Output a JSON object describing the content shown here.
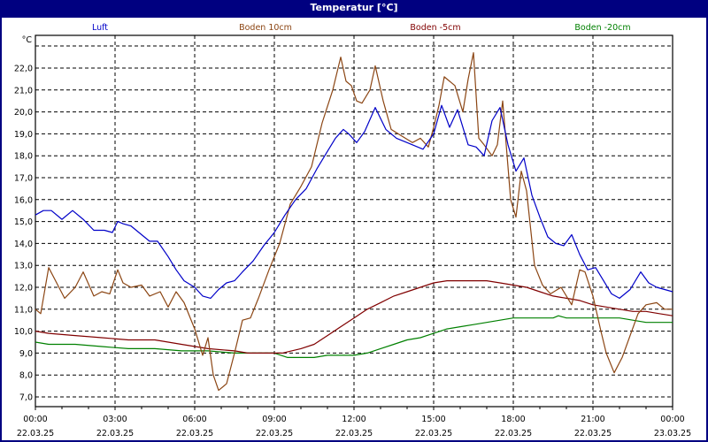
{
  "window": {
    "title": "Temperatur [°C]"
  },
  "chart_data": {
    "type": "line",
    "title": "Temperatur [°C]",
    "ylabel": "°C",
    "xlabel": "",
    "ylim": [
      6.56,
      23.5
    ],
    "xlim_hours": [
      0,
      24
    ],
    "grid": true,
    "legend_position": "top",
    "y_ticks": [
      "7,0",
      "8,0",
      "9,0",
      "10,0",
      "11,0",
      "12,0",
      "13,0",
      "14,0",
      "15,0",
      "16,0",
      "17,0",
      "18,0",
      "19,0",
      "20,0",
      "21,0",
      "22,0"
    ],
    "x_ticks": [
      {
        "time": "00:00",
        "date": "22.03.25"
      },
      {
        "time": "03:00",
        "date": "22.03.25"
      },
      {
        "time": "06:00",
        "date": "22.03.25"
      },
      {
        "time": "09:00",
        "date": "22.03.25"
      },
      {
        "time": "12:00",
        "date": "22.03.25"
      },
      {
        "time": "15:00",
        "date": "22.03.25"
      },
      {
        "time": "18:00",
        "date": "22.03.25"
      },
      {
        "time": "21:00",
        "date": "22.03.25"
      },
      {
        "time": "00:00",
        "date": "23.03.25"
      }
    ],
    "series": [
      {
        "name": "Luft",
        "color": "#0000c8",
        "x": [
          0,
          0.3,
          0.6,
          1,
          1.4,
          1.8,
          2.2,
          2.6,
          2.9,
          3.1,
          3.3,
          3.6,
          4.0,
          4.3,
          4.6,
          5.0,
          5.3,
          5.6,
          6.0,
          6.3,
          6.6,
          6.9,
          7.2,
          7.5,
          7.8,
          8.2,
          8.6,
          9.0,
          9.4,
          9.8,
          10.2,
          10.6,
          11.0,
          11.3,
          11.6,
          11.8,
          12.1,
          12.4,
          12.8,
          13.2,
          13.6,
          14.0,
          14.4,
          14.6,
          15.0,
          15.3,
          15.6,
          15.9,
          16.3,
          16.6,
          16.9,
          17.2,
          17.5,
          17.8,
          18.1,
          18.4,
          18.7,
          19.0,
          19.3,
          19.6,
          19.9,
          20.2,
          20.5,
          20.8,
          21.1,
          21.4,
          21.7,
          22.0,
          22.4,
          22.8,
          23.1,
          23.4,
          23.7,
          24.0
        ],
        "values": [
          15.3,
          15.5,
          15.5,
          15.1,
          15.5,
          15.1,
          14.6,
          14.6,
          14.5,
          15.0,
          14.9,
          14.8,
          14.4,
          14.1,
          14.1,
          13.4,
          12.8,
          12.3,
          12.0,
          11.6,
          11.5,
          11.9,
          12.2,
          12.3,
          12.7,
          13.2,
          13.9,
          14.5,
          15.3,
          16.0,
          16.5,
          17.4,
          18.2,
          18.8,
          19.2,
          19.0,
          18.6,
          19.1,
          20.2,
          19.2,
          18.8,
          18.6,
          18.4,
          18.3,
          19.0,
          20.3,
          19.3,
          20.1,
          18.5,
          18.4,
          18.0,
          19.6,
          20.2,
          18.5,
          17.3,
          17.9,
          16.2,
          15.2,
          14.3,
          14.0,
          13.9,
          14.4,
          13.5,
          12.8,
          12.9,
          12.3,
          11.7,
          11.5,
          11.9,
          12.7,
          12.2,
          12.0,
          11.9,
          11.8
        ]
      },
      {
        "name": "Boden 10cm",
        "color": "#8b4513",
        "x": [
          0,
          0.2,
          0.5,
          0.8,
          1.1,
          1.5,
          1.8,
          2.2,
          2.5,
          2.8,
          3.1,
          3.3,
          3.6,
          4.0,
          4.3,
          4.7,
          5.0,
          5.3,
          5.6,
          6.0,
          6.3,
          6.5,
          6.7,
          6.9,
          7.2,
          7.5,
          7.8,
          8.1,
          8.4,
          8.8,
          9.2,
          9.6,
          10.0,
          10.4,
          10.8,
          11.2,
          11.5,
          11.7,
          11.9,
          12.1,
          12.3,
          12.6,
          12.8,
          13.1,
          13.4,
          13.8,
          14.2,
          14.5,
          14.8,
          15.0,
          15.2,
          15.4,
          15.8,
          16.1,
          16.3,
          16.5,
          16.7,
          16.9,
          17.2,
          17.4,
          17.6,
          17.9,
          18.1,
          18.3,
          18.5,
          18.8,
          19.1,
          19.4,
          19.8,
          20.2,
          20.5,
          20.7,
          21.0,
          21.3,
          21.5,
          21.8,
          22.1,
          22.4,
          22.7,
          23.0,
          23.4,
          23.7,
          24.0
        ],
        "values": [
          11.0,
          10.8,
          12.9,
          12.2,
          11.5,
          12.0,
          12.7,
          11.6,
          11.8,
          11.7,
          12.8,
          12.2,
          12.0,
          12.1,
          11.6,
          11.8,
          11.1,
          11.8,
          11.3,
          10.1,
          8.9,
          9.7,
          8.0,
          7.3,
          7.6,
          9.0,
          10.5,
          10.6,
          11.5,
          12.8,
          14.0,
          15.8,
          16.6,
          17.5,
          19.5,
          21.0,
          22.5,
          21.4,
          21.2,
          20.5,
          20.4,
          21.0,
          22.1,
          20.5,
          19.2,
          18.9,
          18.6,
          18.8,
          18.4,
          19.3,
          20.3,
          21.6,
          21.2,
          20.0,
          21.5,
          22.7,
          18.8,
          18.5,
          18.0,
          18.5,
          20.5,
          16.0,
          15.2,
          17.3,
          16.4,
          13.0,
          12.1,
          11.7,
          12.0,
          11.2,
          12.8,
          12.7,
          11.6,
          10.0,
          9.0,
          8.1,
          8.8,
          9.8,
          10.8,
          11.2,
          11.3,
          11.0,
          11.0
        ]
      },
      {
        "name": "Boden -5cm",
        "color": "#800000",
        "x": [
          0,
          0.5,
          1.5,
          2.5,
          3.5,
          4.5,
          5.5,
          6.5,
          7.5,
          8.0,
          9.0,
          9.3,
          10.0,
          10.5,
          11.0,
          11.5,
          12.0,
          12.5,
          13.0,
          13.5,
          14.0,
          14.5,
          15.0,
          15.5,
          16.0,
          16.5,
          17.0,
          17.5,
          18.0,
          18.5,
          19.0,
          19.5,
          20.0,
          20.5,
          21.0,
          21.5,
          22.0,
          22.5,
          23.0,
          23.5,
          24.0
        ],
        "values": [
          10.0,
          9.9,
          9.8,
          9.7,
          9.6,
          9.6,
          9.4,
          9.2,
          9.1,
          9.0,
          9.0,
          9.0,
          9.2,
          9.4,
          9.8,
          10.2,
          10.6,
          11.0,
          11.3,
          11.6,
          11.8,
          12.0,
          12.2,
          12.3,
          12.3,
          12.3,
          12.3,
          12.2,
          12.1,
          12.0,
          11.8,
          11.6,
          11.5,
          11.4,
          11.2,
          11.1,
          11.0,
          10.9,
          10.9,
          10.8,
          10.7
        ]
      },
      {
        "name": "Boden -20cm",
        "color": "#008000",
        "x": [
          0,
          0.5,
          1.5,
          2.5,
          3.5,
          4.5,
          5.5,
          6.5,
          7.5,
          8.5,
          9.0,
          9.5,
          10.5,
          11.0,
          12.0,
          12.5,
          13.0,
          13.5,
          14.0,
          14.5,
          15.0,
          15.5,
          16.0,
          16.5,
          17.0,
          17.5,
          18.0,
          18.5,
          19.5,
          19.7,
          20.0,
          21.0,
          22.0,
          22.5,
          23.0,
          24.0
        ],
        "values": [
          9.5,
          9.4,
          9.4,
          9.3,
          9.2,
          9.2,
          9.1,
          9.1,
          9.0,
          9.0,
          9.0,
          8.8,
          8.8,
          8.9,
          8.9,
          9.0,
          9.2,
          9.4,
          9.6,
          9.7,
          9.9,
          10.1,
          10.2,
          10.3,
          10.4,
          10.5,
          10.6,
          10.6,
          10.6,
          10.7,
          10.6,
          10.6,
          10.6,
          10.5,
          10.4,
          10.4
        ]
      }
    ]
  }
}
